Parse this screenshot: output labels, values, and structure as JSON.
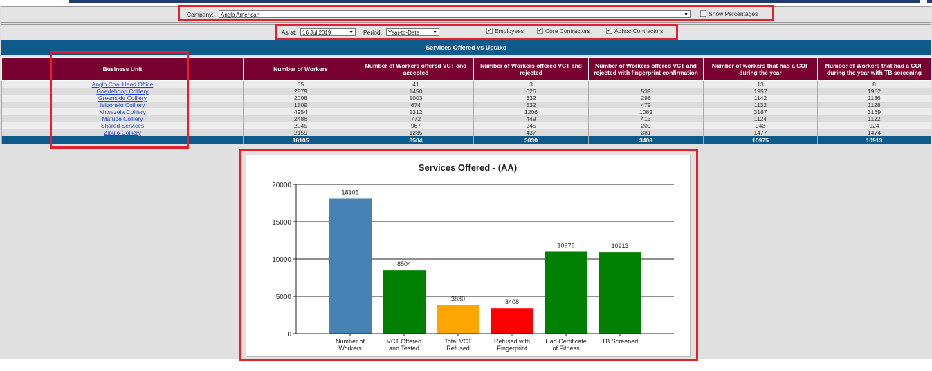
{
  "filters": {
    "company_label": "Company:",
    "company_value": "Anglo American",
    "show_percentages": "Show Percentages",
    "as_at_label": "As at:",
    "as_at_value": "16 Jul 2019",
    "period_label": "Period:",
    "period_value": "Year-to-Date",
    "checks": [
      {
        "label": "Employees",
        "checked": true
      },
      {
        "label": "Core Contractors",
        "checked": true
      },
      {
        "label": "Adhoc Contractors",
        "checked": true
      }
    ]
  },
  "table": {
    "title": "Services Offered vs Uptake",
    "headers": [
      "Business Unit",
      "Number of Workers",
      "Number of Workers offered VCT and accepted",
      "Number of Workers offered VCT and rejected",
      "Number of Workers offered VCT and rejected with fingerprint confirmation",
      "Number of workers that had a COF during the year",
      "Number of Workers that had a COF during the year with TB screening"
    ],
    "rows": [
      [
        "Anglo Coal Head Office",
        "65",
        "41",
        "3",
        "",
        "13",
        "8"
      ],
      [
        "Goedehoop Colliery",
        "2879",
        "1450",
        "626",
        "539",
        "1957",
        "1952"
      ],
      [
        "Greenside Colliery",
        "2008",
        "1003",
        "332",
        "298",
        "1142",
        "1136"
      ],
      [
        "Isibonelo Colliery",
        "1509",
        "674",
        "532",
        "479",
        "1132",
        "1128"
      ],
      [
        "Khwezela Colliery",
        "4954",
        "2312",
        "1206",
        "1089",
        "3187",
        "3169"
      ],
      [
        "Mafube Colliery",
        "2486",
        "772",
        "449",
        "413",
        "1124",
        "1122"
      ],
      [
        "Shared Services",
        "2045",
        "967",
        "245",
        "209",
        "943",
        "924"
      ],
      [
        "Zibulo Colliery",
        "2159",
        "1285",
        "437",
        "381",
        "1477",
        "1474"
      ]
    ],
    "totals": [
      "",
      "18105",
      "8504",
      "3830",
      "3408",
      "10975",
      "10913"
    ]
  },
  "chart_data": {
    "type": "bar",
    "title": "Services Offered - (AA)",
    "categories": [
      [
        "Number of",
        "Workers"
      ],
      [
        "VCT Offered",
        "and Tested"
      ],
      [
        "Total VCT",
        "Refused"
      ],
      [
        "Refused with",
        "Fingerprint"
      ],
      [
        "Had Certificate",
        "of Fitness"
      ],
      [
        "TB Screened"
      ]
    ],
    "values": [
      18105,
      8504,
      3830,
      3408,
      10975,
      10913
    ],
    "colors": [
      "#4682b4",
      "#008000",
      "#ffa500",
      "#ff0000",
      "#008000",
      "#008000"
    ],
    "ylim": [
      0,
      20000
    ],
    "yticks": [
      0,
      5000,
      10000,
      15000,
      20000
    ],
    "grid": true
  }
}
